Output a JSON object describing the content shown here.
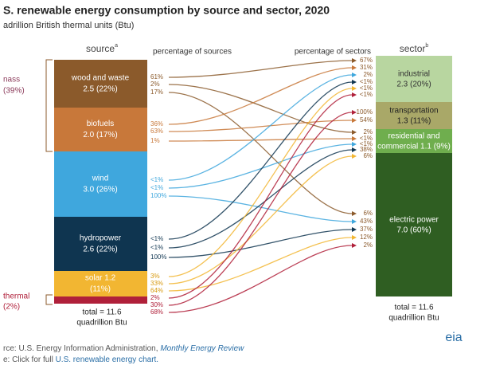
{
  "header": {
    "title": "S. renewable energy consumption by source and sector, 2020",
    "subtitle": "adrillion British thermal units (Btu)"
  },
  "source_heading": {
    "text": "source",
    "sup": "a"
  },
  "sector_heading": {
    "text": "sector",
    "sup": "b"
  },
  "left_caption": "percentage of sources",
  "right_caption": "percentage of sectors",
  "groups": [
    {
      "label": "nass",
      "share": "(39%)"
    },
    {
      "label": "thermal",
      "share": "(2%)"
    }
  ],
  "sources": [
    {
      "name": "wood and waste",
      "value": "2.5 (22%)",
      "flows": [
        "61%",
        "2%",
        "17%"
      ]
    },
    {
      "name": "biofuels",
      "value": "2.0 (17%)",
      "flows": [
        "36%",
        "63%",
        "1%"
      ]
    },
    {
      "name": "wind",
      "value": "3.0 (26%)",
      "flows": [
        "<1%",
        "<1%",
        "100%"
      ]
    },
    {
      "name": "hydropower",
      "value": "2.6 (22%)",
      "flows": [
        "<1%",
        "<1%",
        "100%"
      ]
    },
    {
      "name": "solar 1.2",
      "value": "(11%)",
      "flows": [
        "3%",
        "33%",
        "64%"
      ]
    },
    {
      "name": "",
      "value": "",
      "flows": [
        "2%",
        "30%",
        "68%"
      ]
    }
  ],
  "sectors": [
    {
      "name": "industrial",
      "value": "2.3 (20%)",
      "flows": [
        "67%",
        "31%",
        "2%",
        "<1%",
        "<1%",
        "<1%"
      ]
    },
    {
      "name": "transportation",
      "value": "1.3 (11%)",
      "flows": [
        "100%",
        "54%"
      ]
    },
    {
      "name": "residential and",
      "value": "commercial 1.1 (9%)",
      "flows": [
        "2%",
        "<1%",
        "<1%",
        "38%",
        "6%"
      ]
    },
    {
      "name": "electric power",
      "value": "7.0 (60%)",
      "flows": [
        "6%",
        "43%",
        "37%",
        "12%",
        "2%"
      ]
    }
  ],
  "left_total": [
    "total = 11.6",
    "quadrillion Btu"
  ],
  "right_total": [
    "total = 11.6",
    "quadrillion Btu"
  ],
  "footer": {
    "source_prefix": "rce: U.S. Energy Information Administration, ",
    "source_link": "Monthly Energy Review",
    "note_prefix": "e: Click for full ",
    "note_link": "U.S. renewable energy chart."
  },
  "logo": "eia"
}
